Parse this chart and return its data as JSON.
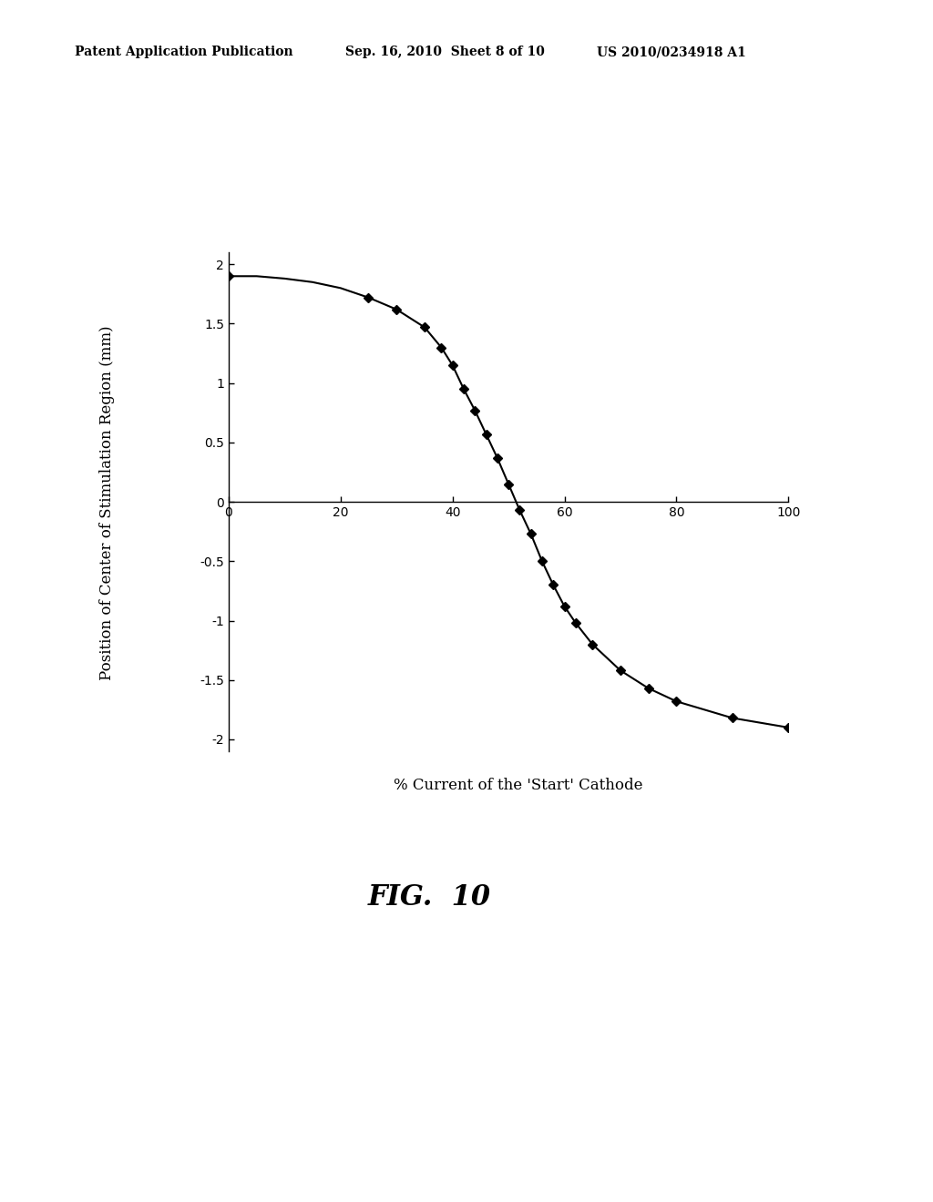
{
  "x_data": [
    0,
    5,
    10,
    15,
    20,
    25,
    30,
    35,
    38,
    40,
    42,
    44,
    46,
    48,
    50,
    52,
    54,
    56,
    58,
    60,
    62,
    65,
    70,
    75,
    80,
    90,
    100
  ],
  "y_data": [
    1.9,
    1.9,
    1.88,
    1.85,
    1.8,
    1.72,
    1.62,
    1.47,
    1.3,
    1.15,
    0.95,
    0.77,
    0.57,
    0.37,
    0.15,
    -0.07,
    -0.27,
    -0.5,
    -0.7,
    -0.88,
    -1.02,
    -1.2,
    -1.42,
    -1.57,
    -1.68,
    -1.82,
    -1.9
  ],
  "marker_x": [
    0,
    25,
    30,
    35,
    38,
    40,
    42,
    44,
    46,
    48,
    50,
    52,
    54,
    56,
    58,
    60,
    62,
    65,
    70,
    75,
    80,
    90,
    100
  ],
  "marker_y": [
    1.9,
    1.72,
    1.62,
    1.47,
    1.3,
    1.15,
    0.95,
    0.77,
    0.57,
    0.37,
    0.15,
    -0.07,
    -0.27,
    -0.5,
    -0.7,
    -0.88,
    -1.02,
    -1.2,
    -1.42,
    -1.57,
    -1.68,
    -1.82,
    -1.9
  ],
  "xlim": [
    0,
    100
  ],
  "ylim": [
    -2.1,
    2.1
  ],
  "xticks": [
    0,
    20,
    40,
    60,
    80,
    100
  ],
  "ytick_vals": [
    -2,
    -1.5,
    -1,
    -0.5,
    0,
    0.5,
    1,
    1.5,
    2
  ],
  "ytick_labels": [
    "-2",
    "-1.5",
    "-1",
    "-0.5",
    "0",
    "0.5",
    "1",
    "1.5",
    "2"
  ],
  "xlabel": "% Current of the 'Start' Cathode",
  "ylabel": "Position of Center of Stimulation Region (mm)",
  "line_color": "#000000",
  "marker_color": "#000000",
  "background_color": "#ffffff",
  "header_left": "Patent Application Publication",
  "header_mid": "Sep. 16, 2010  Sheet 8 of 10",
  "header_right": "US 2010/0234918 A1",
  "fig_label": "FIG.  10"
}
